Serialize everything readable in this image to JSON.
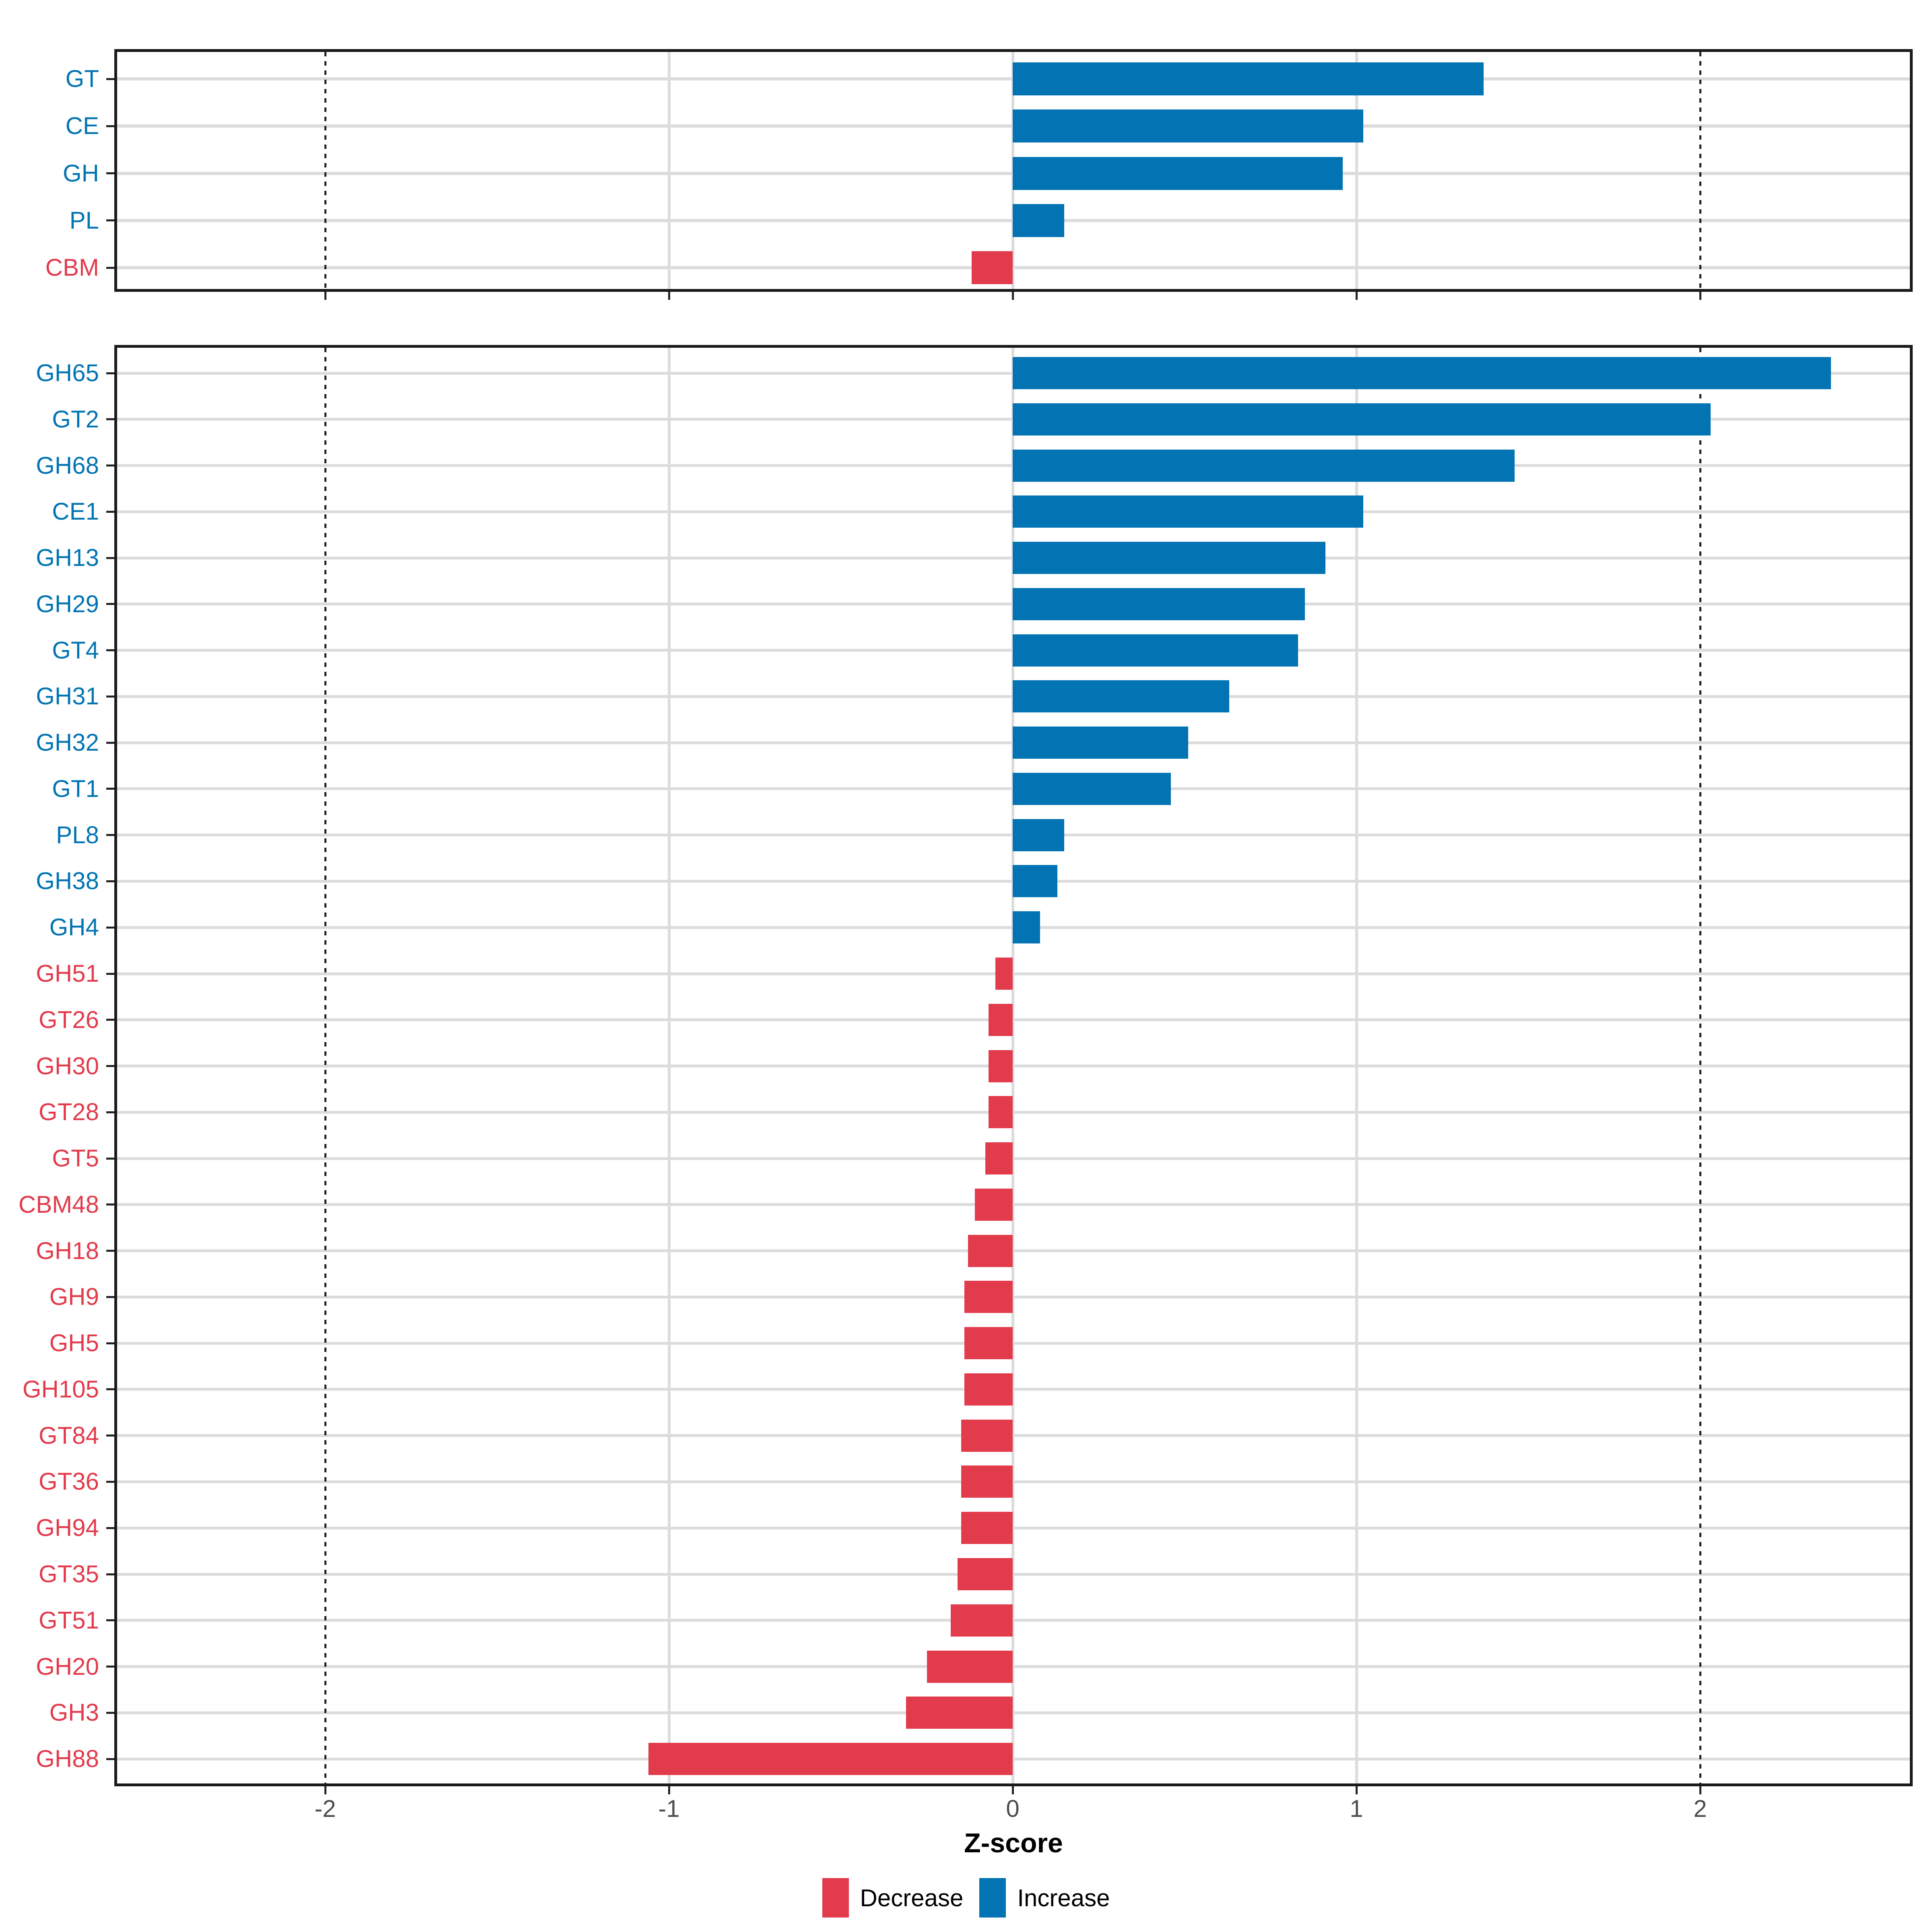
{
  "figure": {
    "xlabel": "Z-score",
    "x_axis_tick_labels": [
      "-2",
      "-1",
      "0",
      "1",
      "2"
    ],
    "legend": {
      "items": [
        {
          "label": "Decrease",
          "color": "#e23b4c"
        },
        {
          "label": "Increase",
          "color": "#0274b3"
        }
      ]
    },
    "colors": {
      "increase_blue": "#0274b3",
      "decrease_red": "#e23b4c",
      "gridline_gray": "#dcdcdc",
      "panel_border": "#1a1a1a",
      "axis_text_gray": "#4d4d4d",
      "reference_line": "#1f1f1f"
    }
  },
  "chart_data": [
    {
      "id": "top-panel-classes",
      "type": "bar",
      "orientation": "horizontal",
      "categories": [
        "GT",
        "CE",
        "GH",
        "PL",
        "CBM"
      ],
      "values": [
        1.37,
        1.02,
        0.96,
        0.15,
        -0.12
      ],
      "xlabel": "Z-score",
      "xlim": [
        -2.61,
        2.62
      ],
      "xticks": [
        -2,
        -1,
        0,
        1,
        2
      ],
      "reference_lines_dotted": [
        -2,
        2
      ],
      "grid": "on",
      "color_rule": "negative = Decrease (red), positive = Increase (blue); category labels share bar color",
      "legend_position": "bottom"
    },
    {
      "id": "bottom-panel-families",
      "type": "bar",
      "orientation": "horizontal",
      "categories": [
        "GH65",
        "GT2",
        "GH68",
        "CE1",
        "GH13",
        "GH29",
        "GT4",
        "GH31",
        "GH32",
        "GT1",
        "PL8",
        "GH38",
        "GH4",
        "GH51",
        "GT26",
        "GH30",
        "GT28",
        "GT5",
        "CBM48",
        "GH18",
        "GH9",
        "GH5",
        "GH105",
        "GT84",
        "GT36",
        "GH94",
        "GT35",
        "GT51",
        "GH20",
        "GH3",
        "GH88"
      ],
      "values": [
        2.38,
        2.03,
        1.46,
        1.02,
        0.91,
        0.85,
        0.83,
        0.63,
        0.51,
        0.46,
        0.15,
        0.13,
        0.08,
        -0.05,
        -0.07,
        -0.07,
        -0.07,
        -0.08,
        -0.11,
        -0.13,
        -0.14,
        -0.14,
        -0.14,
        -0.15,
        -0.15,
        -0.15,
        -0.16,
        -0.18,
        -0.25,
        -0.31,
        -1.06
      ],
      "xlabel": "Z-score",
      "xlim": [
        -2.61,
        2.62
      ],
      "xticks": [
        -2,
        -1,
        0,
        1,
        2
      ],
      "reference_lines_dotted": [
        -2,
        2
      ],
      "grid": "on",
      "color_rule": "negative = Decrease (red), positive = Increase (blue); category labels share bar color",
      "legend_position": "bottom"
    }
  ]
}
